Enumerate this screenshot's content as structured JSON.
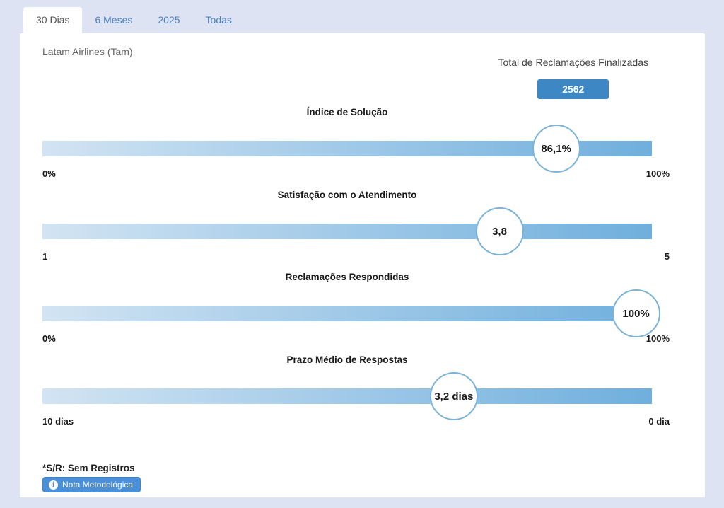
{
  "tabs": [
    {
      "label": "30 Dias",
      "active": true
    },
    {
      "label": "6 Meses",
      "active": false
    },
    {
      "label": "2025",
      "active": false
    },
    {
      "label": "Todas",
      "active": false
    }
  ],
  "header": {
    "company": "Latam Airlines (Tam)",
    "total_label": "Total de Reclamações Finalizadas",
    "total_value": "2562"
  },
  "chart_data": {
    "type": "bar",
    "subtype": "horizontal-gauge-bars",
    "title": "Total de Reclamações Finalizadas",
    "total_finalized_complaints": 2562,
    "company": "Latam Airlines (Tam)",
    "period": "30 Dias",
    "gauges": [
      {
        "title": "Índice de Solução",
        "value": 86.1,
        "value_label": "86,1%",
        "min": 0,
        "max": 100,
        "min_label": "0%",
        "max_label": "100%",
        "position_pct": 84.3
      },
      {
        "title": "Satisfação com o Atendimento",
        "value": 3.8,
        "value_label": "3,8",
        "min": 1,
        "max": 5,
        "min_label": "1",
        "max_label": "5",
        "position_pct": 75
      },
      {
        "title": "Reclamações Respondidas",
        "value": 100,
        "value_label": "100%",
        "min": 0,
        "max": 100,
        "min_label": "0%",
        "max_label": "100%",
        "position_pct": 97.4
      },
      {
        "title": "Prazo Médio de Respostas",
        "value": 3.2,
        "value_label": "3,2 dias",
        "min": 10,
        "max": 0,
        "min_label": "10 dias",
        "max_label": "0 dia",
        "position_pct": 67.5
      }
    ],
    "layout": {
      "bar_style": "full-gradient-track",
      "marker": "circle-bubble",
      "legend": "none",
      "grid": false
    }
  },
  "footer": {
    "note": "*S/R: Sem Registros",
    "button_label": "Nota Metodológica",
    "info_icon_glyph": "i"
  },
  "colors": {
    "page_background": "#dee3f4",
    "card_background": "#ffffff",
    "tab_text_blue": "#4a80c0",
    "active_tab_text": "#555555",
    "badge_blue": "#3d87c5",
    "button_blue": "#4a90d9",
    "bar_gradient_start": "#d2e4f3",
    "bar_gradient_end": "#6fafdd",
    "bubble_border": "#7ab3d9"
  }
}
